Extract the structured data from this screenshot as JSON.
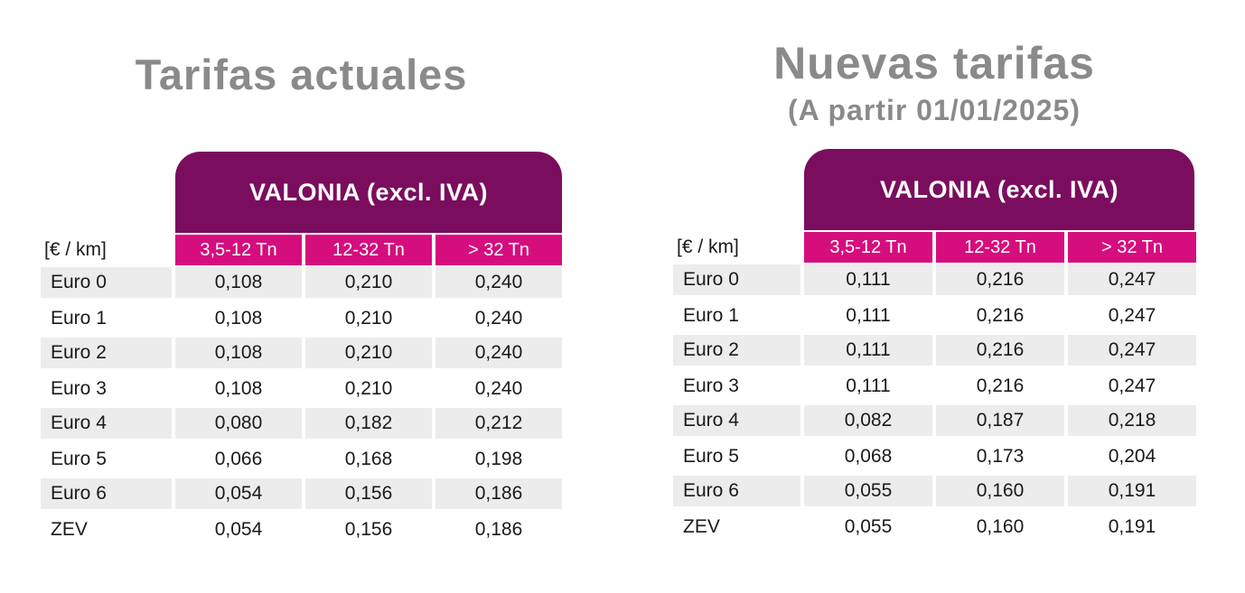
{
  "left_panel": {
    "title": "Tarifas actuales",
    "table": {
      "region_header": "VALONIA (excl. IVA)",
      "unit_label": "[€ / km]",
      "columns": [
        "3,5-12 Tn",
        "12-32 Tn",
        "> 32 Tn"
      ],
      "rows": [
        {
          "label": "Euro 0",
          "values": [
            "0,108",
            "0,210",
            "0,240"
          ]
        },
        {
          "label": "Euro 1",
          "values": [
            "0,108",
            "0,210",
            "0,240"
          ]
        },
        {
          "label": "Euro 2",
          "values": [
            "0,108",
            "0,210",
            "0,240"
          ]
        },
        {
          "label": "Euro 3",
          "values": [
            "0,108",
            "0,210",
            "0,240"
          ]
        },
        {
          "label": "Euro 4",
          "values": [
            "0,080",
            "0,182",
            "0,212"
          ]
        },
        {
          "label": "Euro 5",
          "values": [
            "0,066",
            "0,168",
            "0,198"
          ]
        },
        {
          "label": "Euro 6",
          "values": [
            "0,054",
            "0,156",
            "0,186"
          ]
        },
        {
          "label": "ZEV",
          "values": [
            "0,054",
            "0,156",
            "0,186"
          ]
        }
      ]
    }
  },
  "right_panel": {
    "title": "Nuevas tarifas",
    "subtitle": "(A partir 01/01/2025)",
    "table": {
      "region_header": "VALONIA (excl. IVA)",
      "unit_label": "[€ / km]",
      "columns": [
        "3,5-12 Tn",
        "12-32 Tn",
        "> 32 Tn"
      ],
      "rows": [
        {
          "label": "Euro 0",
          "values": [
            "0,111",
            "0,216",
            "0,247"
          ]
        },
        {
          "label": "Euro 1",
          "values": [
            "0,111",
            "0,216",
            "0,247"
          ]
        },
        {
          "label": "Euro 2",
          "values": [
            "0,111",
            "0,216",
            "0,247"
          ]
        },
        {
          "label": "Euro 3",
          "values": [
            "0,111",
            "0,216",
            "0,247"
          ]
        },
        {
          "label": "Euro 4",
          "values": [
            "0,082",
            "0,187",
            "0,218"
          ]
        },
        {
          "label": "Euro 5",
          "values": [
            "0,068",
            "0,173",
            "0,204"
          ]
        },
        {
          "label": "Euro 6",
          "values": [
            "0,055",
            "0,160",
            "0,191"
          ]
        },
        {
          "label": "ZEV",
          "values": [
            "0,055",
            "0,160",
            "0,191"
          ]
        }
      ]
    }
  },
  "colors": {
    "header_purple": "#7b0d5e",
    "header_pink": "#d60d7d",
    "row_stripe_gray": "#ececec",
    "title_gray": "#8a8a8a"
  }
}
